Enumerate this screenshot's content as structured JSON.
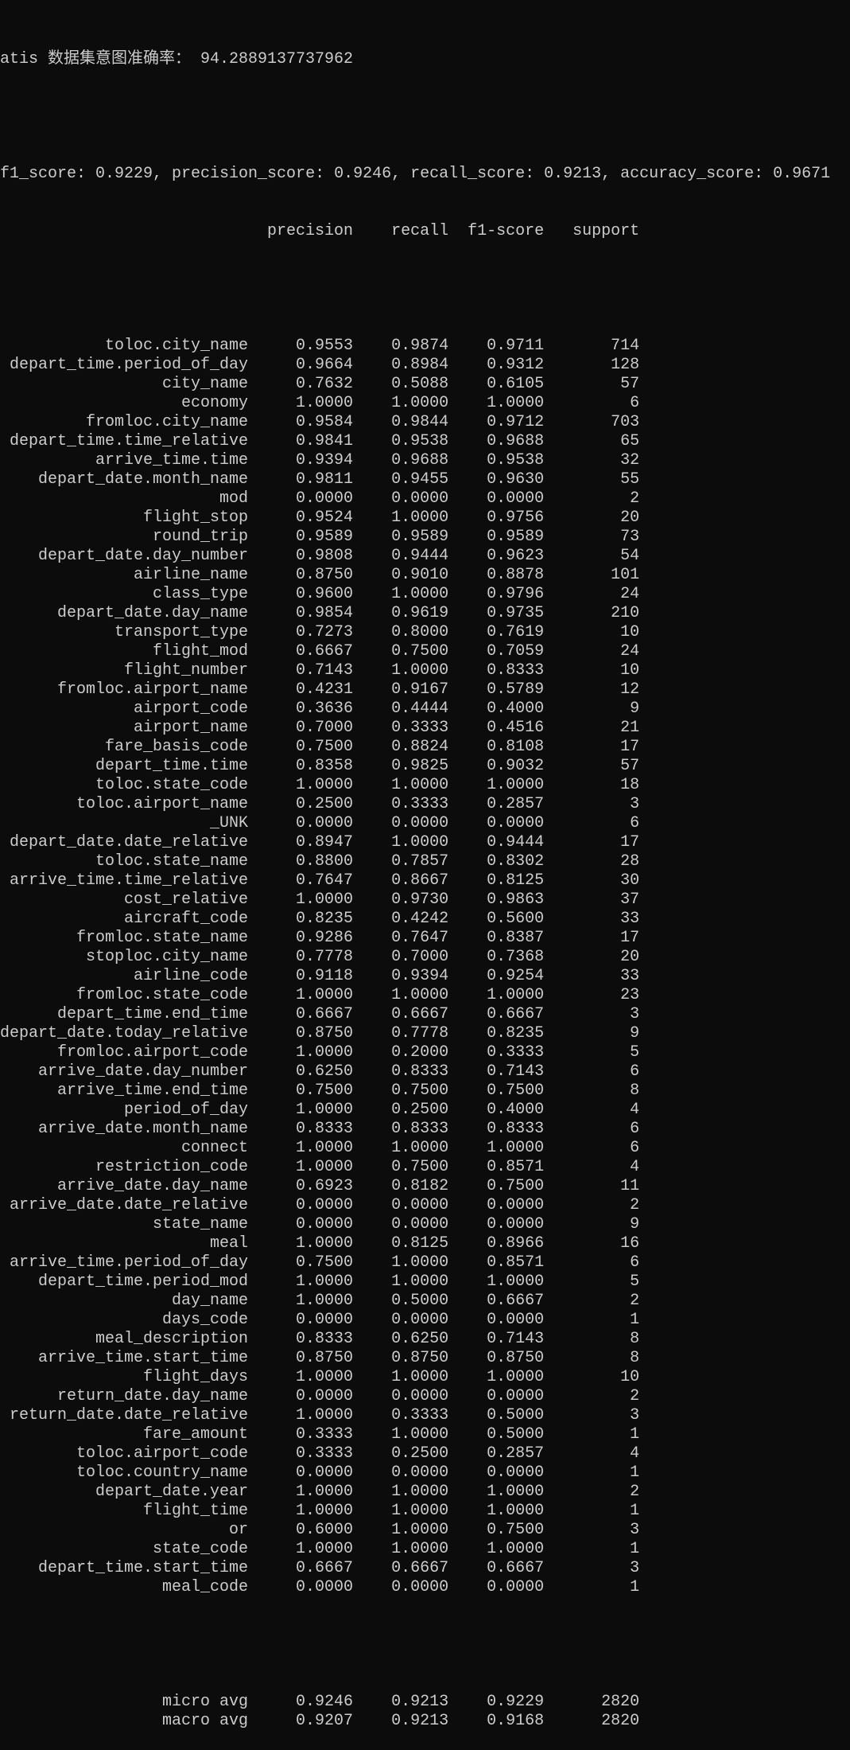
{
  "console": {
    "intent_accuracy_label": "atis 数据集意图准确率：",
    "intent_accuracy_value": "94.2889137737962",
    "summary_line": "f1_score: 0.9229, precision_score: 0.9246, recall_score: 0.9213, accuracy_score: 0.9671"
  },
  "report": {
    "headers": [
      "precision",
      "recall",
      "f1-score",
      "support"
    ],
    "rows": [
      [
        "toloc.city_name",
        "0.9553",
        "0.9874",
        "0.9711",
        "714"
      ],
      [
        "depart_time.period_of_day",
        "0.9664",
        "0.8984",
        "0.9312",
        "128"
      ],
      [
        "city_name",
        "0.7632",
        "0.5088",
        "0.6105",
        "57"
      ],
      [
        "economy",
        "1.0000",
        "1.0000",
        "1.0000",
        "6"
      ],
      [
        "fromloc.city_name",
        "0.9584",
        "0.9844",
        "0.9712",
        "703"
      ],
      [
        "depart_time.time_relative",
        "0.9841",
        "0.9538",
        "0.9688",
        "65"
      ],
      [
        "arrive_time.time",
        "0.9394",
        "0.9688",
        "0.9538",
        "32"
      ],
      [
        "depart_date.month_name",
        "0.9811",
        "0.9455",
        "0.9630",
        "55"
      ],
      [
        "mod",
        "0.0000",
        "0.0000",
        "0.0000",
        "2"
      ],
      [
        "flight_stop",
        "0.9524",
        "1.0000",
        "0.9756",
        "20"
      ],
      [
        "round_trip",
        "0.9589",
        "0.9589",
        "0.9589",
        "73"
      ],
      [
        "depart_date.day_number",
        "0.9808",
        "0.9444",
        "0.9623",
        "54"
      ],
      [
        "airline_name",
        "0.8750",
        "0.9010",
        "0.8878",
        "101"
      ],
      [
        "class_type",
        "0.9600",
        "1.0000",
        "0.9796",
        "24"
      ],
      [
        "depart_date.day_name",
        "0.9854",
        "0.9619",
        "0.9735",
        "210"
      ],
      [
        "transport_type",
        "0.7273",
        "0.8000",
        "0.7619",
        "10"
      ],
      [
        "flight_mod",
        "0.6667",
        "0.7500",
        "0.7059",
        "24"
      ],
      [
        "flight_number",
        "0.7143",
        "1.0000",
        "0.8333",
        "10"
      ],
      [
        "fromloc.airport_name",
        "0.4231",
        "0.9167",
        "0.5789",
        "12"
      ],
      [
        "airport_code",
        "0.3636",
        "0.4444",
        "0.4000",
        "9"
      ],
      [
        "airport_name",
        "0.7000",
        "0.3333",
        "0.4516",
        "21"
      ],
      [
        "fare_basis_code",
        "0.7500",
        "0.8824",
        "0.8108",
        "17"
      ],
      [
        "depart_time.time",
        "0.8358",
        "0.9825",
        "0.9032",
        "57"
      ],
      [
        "toloc.state_code",
        "1.0000",
        "1.0000",
        "1.0000",
        "18"
      ],
      [
        "toloc.airport_name",
        "0.2500",
        "0.3333",
        "0.2857",
        "3"
      ],
      [
        "_UNK",
        "0.0000",
        "0.0000",
        "0.0000",
        "6"
      ],
      [
        "depart_date.date_relative",
        "0.8947",
        "1.0000",
        "0.9444",
        "17"
      ],
      [
        "toloc.state_name",
        "0.8800",
        "0.7857",
        "0.8302",
        "28"
      ],
      [
        "arrive_time.time_relative",
        "0.7647",
        "0.8667",
        "0.8125",
        "30"
      ],
      [
        "cost_relative",
        "1.0000",
        "0.9730",
        "0.9863",
        "37"
      ],
      [
        "aircraft_code",
        "0.8235",
        "0.4242",
        "0.5600",
        "33"
      ],
      [
        "fromloc.state_name",
        "0.9286",
        "0.7647",
        "0.8387",
        "17"
      ],
      [
        "stoploc.city_name",
        "0.7778",
        "0.7000",
        "0.7368",
        "20"
      ],
      [
        "airline_code",
        "0.9118",
        "0.9394",
        "0.9254",
        "33"
      ],
      [
        "fromloc.state_code",
        "1.0000",
        "1.0000",
        "1.0000",
        "23"
      ],
      [
        "depart_time.end_time",
        "0.6667",
        "0.6667",
        "0.6667",
        "3"
      ],
      [
        "depart_date.today_relative",
        "0.8750",
        "0.7778",
        "0.8235",
        "9"
      ],
      [
        "fromloc.airport_code",
        "1.0000",
        "0.2000",
        "0.3333",
        "5"
      ],
      [
        "arrive_date.day_number",
        "0.6250",
        "0.8333",
        "0.7143",
        "6"
      ],
      [
        "arrive_time.end_time",
        "0.7500",
        "0.7500",
        "0.7500",
        "8"
      ],
      [
        "period_of_day",
        "1.0000",
        "0.2500",
        "0.4000",
        "4"
      ],
      [
        "arrive_date.month_name",
        "0.8333",
        "0.8333",
        "0.8333",
        "6"
      ],
      [
        "connect",
        "1.0000",
        "1.0000",
        "1.0000",
        "6"
      ],
      [
        "restriction_code",
        "1.0000",
        "0.7500",
        "0.8571",
        "4"
      ],
      [
        "arrive_date.day_name",
        "0.6923",
        "0.8182",
        "0.7500",
        "11"
      ],
      [
        "arrive_date.date_relative",
        "0.0000",
        "0.0000",
        "0.0000",
        "2"
      ],
      [
        "state_name",
        "0.0000",
        "0.0000",
        "0.0000",
        "9"
      ],
      [
        "meal",
        "1.0000",
        "0.8125",
        "0.8966",
        "16"
      ],
      [
        "arrive_time.period_of_day",
        "0.7500",
        "1.0000",
        "0.8571",
        "6"
      ],
      [
        "depart_time.period_mod",
        "1.0000",
        "1.0000",
        "1.0000",
        "5"
      ],
      [
        "day_name",
        "1.0000",
        "0.5000",
        "0.6667",
        "2"
      ],
      [
        "days_code",
        "0.0000",
        "0.0000",
        "0.0000",
        "1"
      ],
      [
        "meal_description",
        "0.8333",
        "0.6250",
        "0.7143",
        "8"
      ],
      [
        "arrive_time.start_time",
        "0.8750",
        "0.8750",
        "0.8750",
        "8"
      ],
      [
        "flight_days",
        "1.0000",
        "1.0000",
        "1.0000",
        "10"
      ],
      [
        "return_date.day_name",
        "0.0000",
        "0.0000",
        "0.0000",
        "2"
      ],
      [
        "return_date.date_relative",
        "1.0000",
        "0.3333",
        "0.5000",
        "3"
      ],
      [
        "fare_amount",
        "0.3333",
        "1.0000",
        "0.5000",
        "1"
      ],
      [
        "toloc.airport_code",
        "0.3333",
        "0.2500",
        "0.2857",
        "4"
      ],
      [
        "toloc.country_name",
        "0.0000",
        "0.0000",
        "0.0000",
        "1"
      ],
      [
        "depart_date.year",
        "1.0000",
        "1.0000",
        "1.0000",
        "2"
      ],
      [
        "flight_time",
        "1.0000",
        "1.0000",
        "1.0000",
        "1"
      ],
      [
        "or",
        "0.6000",
        "1.0000",
        "0.7500",
        "3"
      ],
      [
        "state_code",
        "1.0000",
        "1.0000",
        "1.0000",
        "1"
      ],
      [
        "depart_time.start_time",
        "0.6667",
        "0.6667",
        "0.6667",
        "3"
      ],
      [
        "meal_code",
        "0.0000",
        "0.0000",
        "0.0000",
        "1"
      ]
    ],
    "averages": [
      [
        "micro avg",
        "0.9246",
        "0.9213",
        "0.9229",
        "2820"
      ],
      [
        "macro avg",
        "0.9207",
        "0.9213",
        "0.9168",
        "2820"
      ]
    ]
  },
  "colors": {
    "background": "#0c0c0c",
    "text": "#cccccc"
  }
}
